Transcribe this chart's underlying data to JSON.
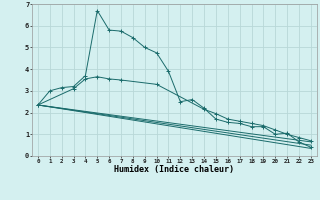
{
  "xlabel": "Humidex (Indice chaleur)",
  "background_color": "#d4f0f0",
  "grid_color": "#b8d8d8",
  "line_color": "#1a6b6b",
  "xlim": [
    -0.5,
    23.5
  ],
  "ylim": [
    0,
    7
  ],
  "xtick_vals": [
    0,
    1,
    2,
    3,
    4,
    5,
    6,
    7,
    8,
    9,
    10,
    11,
    12,
    13,
    14,
    15,
    16,
    17,
    18,
    19,
    20,
    21,
    22,
    23
  ],
  "ytick_vals": [
    0,
    1,
    2,
    3,
    4,
    5,
    6,
    7
  ],
  "series": [
    {
      "x": [
        0,
        1,
        2,
        3,
        4,
        5,
        6,
        7,
        8,
        9,
        10,
        11,
        12,
        13,
        14,
        15,
        16,
        17,
        18,
        19,
        20,
        21,
        22,
        23
      ],
      "y": [
        2.35,
        3.0,
        3.15,
        3.2,
        3.7,
        6.7,
        5.8,
        5.75,
        5.45,
        5.0,
        4.75,
        3.9,
        2.5,
        2.6,
        2.2,
        1.7,
        1.55,
        1.5,
        1.35,
        1.35,
        1.0,
        1.05,
        0.65,
        0.4
      ],
      "marker": true
    },
    {
      "x": [
        0,
        3,
        4,
        5,
        6,
        7,
        10,
        14,
        15,
        16,
        17,
        18,
        19,
        20,
        21,
        22,
        23
      ],
      "y": [
        2.35,
        3.1,
        3.55,
        3.65,
        3.55,
        3.5,
        3.3,
        2.15,
        1.95,
        1.7,
        1.6,
        1.5,
        1.4,
        1.2,
        1.0,
        0.85,
        0.7
      ],
      "marker": true
    },
    {
      "x": [
        0,
        23
      ],
      "y": [
        2.35,
        0.35
      ],
      "marker": false
    },
    {
      "x": [
        0,
        23
      ],
      "y": [
        2.35,
        0.5
      ],
      "marker": false
    },
    {
      "x": [
        0,
        23
      ],
      "y": [
        2.35,
        0.65
      ],
      "marker": false
    }
  ]
}
